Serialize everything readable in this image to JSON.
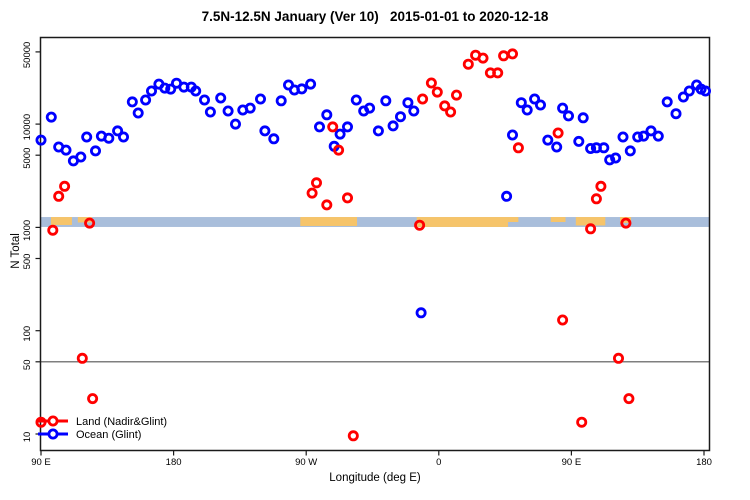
{
  "header": {
    "title": "7.5N-12.5N January (Ver 10)   2015-01-01 to 2020-12-18"
  },
  "chart_data": {
    "type": "scatter",
    "title": "7.5N-12.5N January (Ver 10)   2015-01-01 to 2020-12-18",
    "xlabel": "Longitude (deg E)",
    "ylabel": "N Total",
    "x_axis": {
      "note": "x = degrees along axis starting at 90E, wrapping 90E>180>90W>0>90E>180",
      "range_deg": [
        0,
        450
      ],
      "ticks_deg": [
        0,
        90,
        180,
        270,
        360,
        450
      ],
      "tick_labels": [
        "90 E",
        "180",
        "90 W",
        "0",
        "90 E",
        "180"
      ]
    },
    "y_axis": {
      "scale": "log10",
      "ticks": [
        50000,
        10000,
        5000,
        1000,
        500,
        100,
        50,
        10
      ],
      "range": [
        7,
        70000
      ]
    },
    "reference_line": {
      "y": 50,
      "color": "#555555"
    },
    "map_strip": {
      "ocean_color": "#a9bedb",
      "land_color": "#f6c46a",
      "n_range": [
        1010,
        1260
      ],
      "land_patches_deg": [
        {
          "from": 6.8,
          "to": 21.0,
          "coverage": 0.8
        },
        {
          "from": 25.0,
          "to": 34.6,
          "coverage": 0.55
        },
        {
          "from": 176.0,
          "to": 214.5,
          "coverage": 0.9
        },
        {
          "from": 255.0,
          "to": 317.0,
          "coverage": 1.0
        },
        {
          "from": 317.0,
          "to": 324.0,
          "coverage": 0.5
        },
        {
          "from": 346.0,
          "to": 356.0,
          "coverage": 0.5
        },
        {
          "from": 363.0,
          "to": 383.0,
          "coverage": 0.85
        },
        {
          "from": 393.0,
          "to": 400.5,
          "coverage": 0.6
        }
      ]
    },
    "legend": {
      "position": "bottom-left",
      "entries": [
        {
          "label": "Land (Nadir&Glint)",
          "color": "#ff0000",
          "series": "land"
        },
        {
          "label": "Ocean (Glint)",
          "color": "#0000ff",
          "series": "ocean"
        }
      ]
    },
    "series": [
      {
        "name": "Land (Nadir&Glint)",
        "color": "#ff0000",
        "points": [
          [
            0,
            13
          ],
          [
            8,
            940
          ],
          [
            12,
            2000
          ],
          [
            16,
            2500
          ],
          [
            28,
            54
          ],
          [
            33,
            1100
          ],
          [
            35,
            22
          ],
          [
            184,
            2150
          ],
          [
            187,
            2700
          ],
          [
            194,
            1650
          ],
          [
            198,
            9400
          ],
          [
            202,
            5600
          ],
          [
            208,
            1930
          ],
          [
            212,
            9.6
          ],
          [
            257,
            1050
          ],
          [
            259,
            17500
          ],
          [
            265,
            25000
          ],
          [
            269,
            20400
          ],
          [
            274,
            15000
          ],
          [
            278,
            13100
          ],
          [
            282,
            19100
          ],
          [
            290,
            38000
          ],
          [
            295,
            46500
          ],
          [
            300,
            43500
          ],
          [
            305,
            31300
          ],
          [
            310,
            31300
          ],
          [
            314,
            45800
          ],
          [
            320,
            47800
          ],
          [
            324,
            5900
          ],
          [
            351,
            8200
          ],
          [
            354,
            127
          ],
          [
            367,
            13
          ],
          [
            373,
            970
          ],
          [
            377,
            1890
          ],
          [
            380,
            2500
          ],
          [
            392,
            54
          ],
          [
            397,
            1100
          ],
          [
            399,
            22
          ]
        ]
      },
      {
        "name": "Ocean (Glint)",
        "color": "#0000ff",
        "points": [
          [
            0,
            7000
          ],
          [
            7,
            11700
          ],
          [
            12,
            6000
          ],
          [
            17,
            5600
          ],
          [
            22,
            4400
          ],
          [
            27,
            4800
          ],
          [
            31,
            7500
          ],
          [
            37,
            5500
          ],
          [
            41,
            7650
          ],
          [
            46,
            7300
          ],
          [
            52,
            8600
          ],
          [
            56,
            7500
          ],
          [
            62,
            16400
          ],
          [
            66,
            12800
          ],
          [
            71,
            17100
          ],
          [
            75,
            20900
          ],
          [
            80,
            24400
          ],
          [
            84,
            22300
          ],
          [
            88,
            21800
          ],
          [
            92,
            24900
          ],
          [
            97,
            22800
          ],
          [
            102,
            22800
          ],
          [
            105,
            20900
          ],
          [
            111,
            17100
          ],
          [
            115,
            13100
          ],
          [
            122,
            17900
          ],
          [
            127,
            13400
          ],
          [
            132,
            10000
          ],
          [
            137,
            13700
          ],
          [
            142,
            14300
          ],
          [
            149,
            17500
          ],
          [
            152,
            8600
          ],
          [
            158,
            7200
          ],
          [
            163,
            16800
          ],
          [
            168,
            23900
          ],
          [
            172,
            21400
          ],
          [
            177,
            21900
          ],
          [
            183,
            24400
          ],
          [
            189,
            9400
          ],
          [
            194,
            12300
          ],
          [
            199,
            6100
          ],
          [
            203,
            8000
          ],
          [
            208,
            9400
          ],
          [
            214,
            17100
          ],
          [
            219,
            13400
          ],
          [
            223,
            14300
          ],
          [
            229,
            8600
          ],
          [
            234,
            16800
          ],
          [
            239,
            9600
          ],
          [
            244,
            11800
          ],
          [
            249,
            16100
          ],
          [
            253,
            13400
          ],
          [
            258,
            149
          ],
          [
            316,
            2000
          ],
          [
            320,
            7850
          ],
          [
            326,
            16100
          ],
          [
            330,
            13700
          ],
          [
            335,
            17500
          ],
          [
            339,
            15300
          ],
          [
            344,
            7000
          ],
          [
            350,
            6000
          ],
          [
            354,
            14300
          ],
          [
            358,
            12000
          ],
          [
            365,
            6800
          ],
          [
            368,
            11500
          ],
          [
            373,
            5800
          ],
          [
            377,
            5900
          ],
          [
            382,
            5900
          ],
          [
            386,
            4500
          ],
          [
            390,
            4700
          ],
          [
            395,
            7500
          ],
          [
            400,
            5500
          ],
          [
            405,
            7500
          ],
          [
            409,
            7650
          ],
          [
            414,
            8600
          ],
          [
            419,
            7650
          ],
          [
            425,
            16400
          ],
          [
            431,
            12600
          ],
          [
            436,
            18300
          ],
          [
            440,
            20900
          ],
          [
            445,
            23900
          ],
          [
            448,
            21800
          ],
          [
            451,
            20900
          ]
        ]
      }
    ]
  }
}
